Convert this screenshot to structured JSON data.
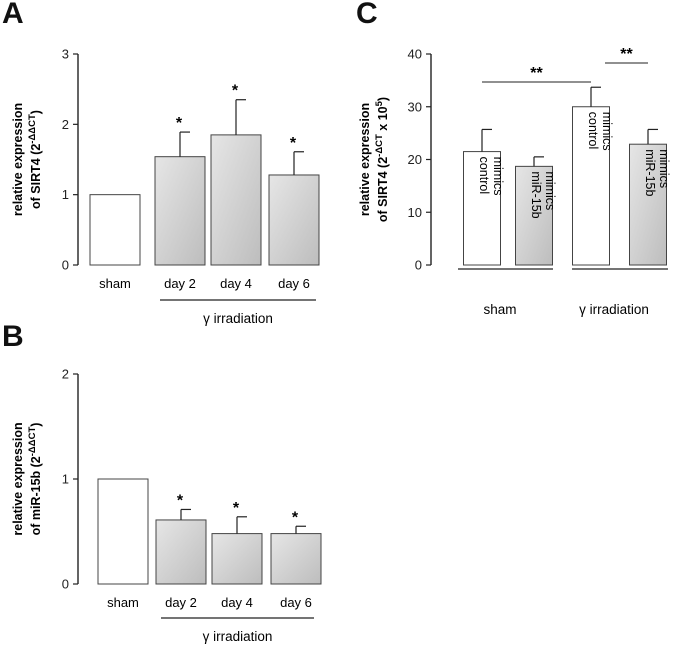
{
  "panel_labels": {
    "a": "A",
    "b": "B",
    "c": "C"
  },
  "colors": {
    "axis": "#222222",
    "bar_outline": "#444444",
    "bar_white": "#ffffff",
    "bar_grey": "#c8c8c8"
  },
  "chart_data": [
    {
      "id": "A",
      "type": "bar",
      "ylabel_line1": "relative expression",
      "ylabel_line2": "of SIRT4 (2",
      "ylabel_sup": "-ΔΔCT",
      "ylabel_end": ")",
      "ylim": [
        0,
        3
      ],
      "yticks": [
        "0",
        "1",
        "2",
        "3"
      ],
      "categories": [
        "sham",
        "day 2",
        "day 4",
        "day 6"
      ],
      "values": [
        1.0,
        1.54,
        1.85,
        1.28
      ],
      "errors": [
        0,
        0.35,
        0.5,
        0.33
      ],
      "significance": [
        "",
        "*",
        "*",
        "*"
      ],
      "fills": [
        "white",
        "grey",
        "grey",
        "grey"
      ],
      "group_label": "γ irradiation"
    },
    {
      "id": "B",
      "type": "bar",
      "ylabel_line1": "relative expression",
      "ylabel_line2": "of miR-15b (2",
      "ylabel_sup": "-ΔΔCT",
      "ylabel_end": ")",
      "ylim": [
        0,
        2
      ],
      "yticks": [
        "0",
        "1",
        "2"
      ],
      "categories": [
        "sham",
        "day 2",
        "day 4",
        "day 6"
      ],
      "values": [
        1.0,
        0.61,
        0.48,
        0.48
      ],
      "errors": [
        0,
        0.1,
        0.16,
        0.07
      ],
      "significance": [
        "",
        "*",
        "*",
        "*"
      ],
      "fills": [
        "white",
        "grey",
        "grey",
        "grey"
      ],
      "group_label": "γ irradiation"
    },
    {
      "id": "C",
      "type": "bar",
      "ylabel_line1": "relative expression",
      "ylabel_line2": "of SIRT4 (2",
      "ylabel_sup": "-ΔCT",
      "ylabel_mid": " x 10",
      "ylabel_sup2": "5",
      "ylabel_end": ")",
      "ylim": [
        0,
        40
      ],
      "yticks": [
        "0",
        "10",
        "20",
        "30",
        "40"
      ],
      "bar_labels": [
        [
          "control",
          "mimics"
        ],
        [
          "miR-15b",
          "mimics"
        ],
        [
          "control",
          "mimics"
        ],
        [
          "miR-15b",
          "mimics"
        ]
      ],
      "values": [
        21.5,
        18.7,
        30.0,
        22.9
      ],
      "errors": [
        4.2,
        1.8,
        3.7,
        2.8
      ],
      "fills": [
        "white",
        "grey",
        "white",
        "grey"
      ],
      "groups": [
        "sham",
        "γ irradiation"
      ],
      "significance_brackets": [
        {
          "from": 0,
          "to": 2,
          "label": "**"
        },
        {
          "from": 2,
          "to": 3,
          "label": "**"
        }
      ]
    }
  ]
}
